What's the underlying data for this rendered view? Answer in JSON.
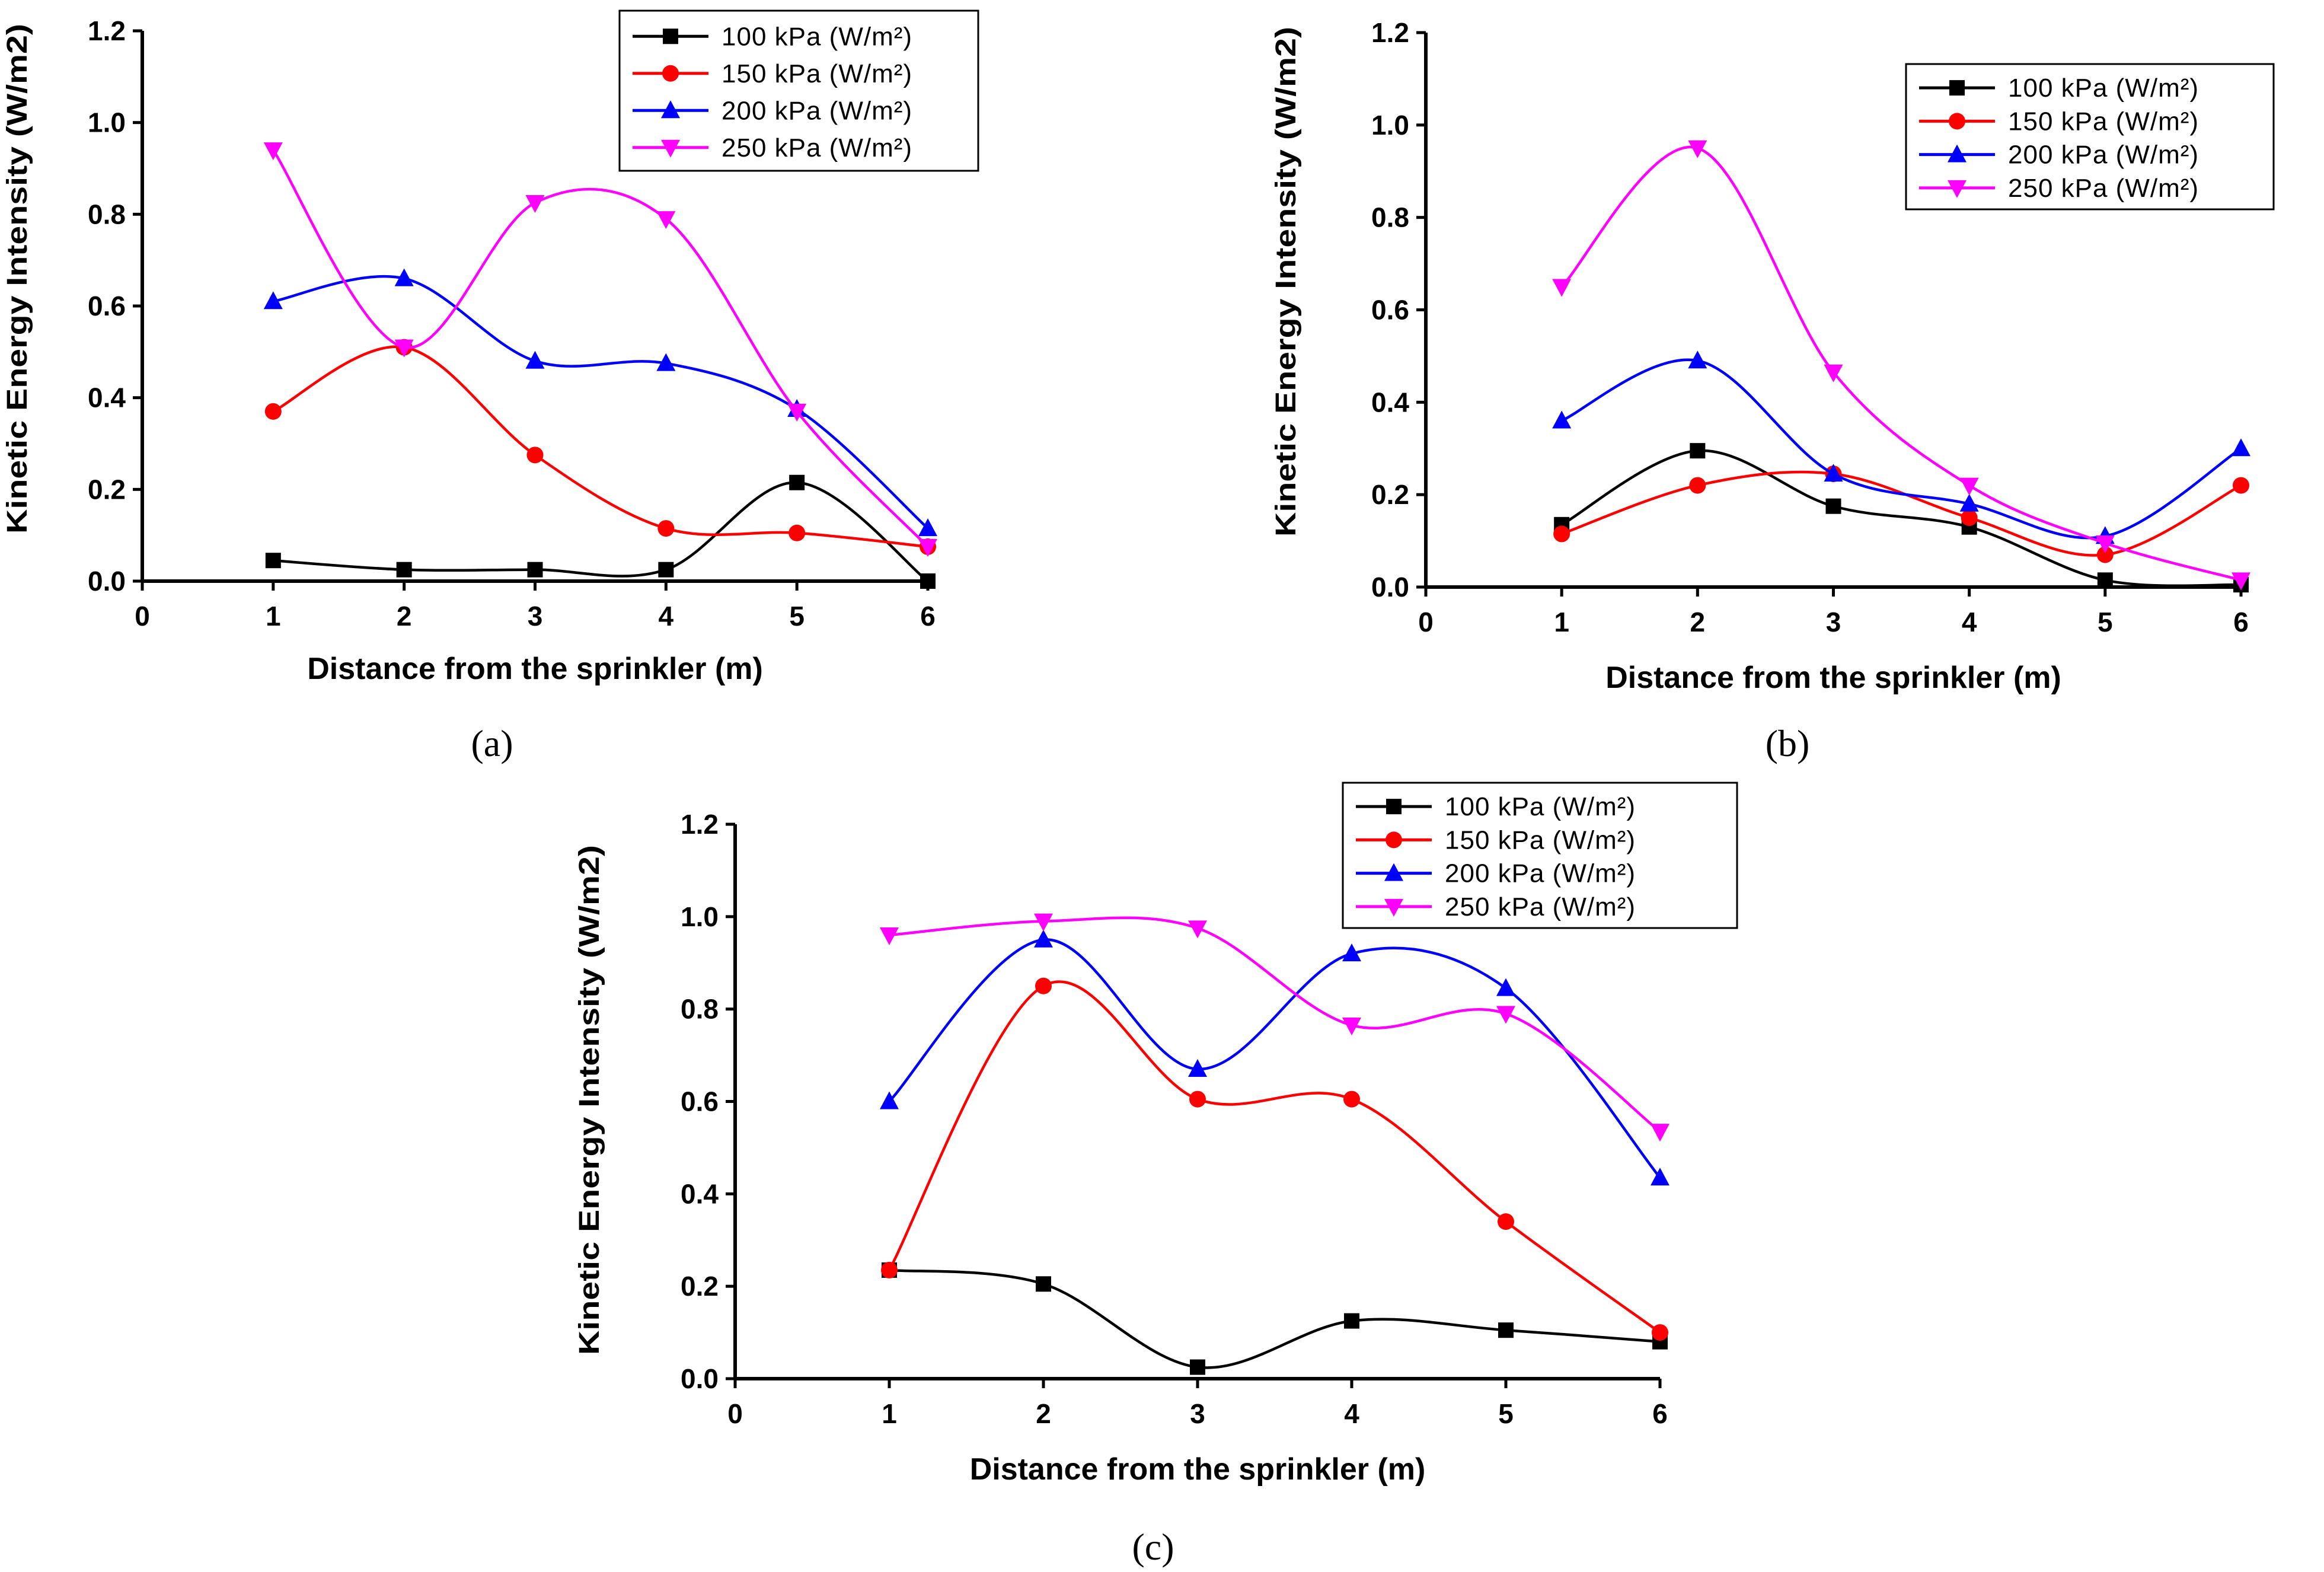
{
  "chart_data": [
    {
      "type": "line",
      "panel_label": "(a)",
      "xlabel": "Distance from the sprinkler (m)",
      "ylabel": "Kinetic Energy Intensity (W/m2)",
      "xlim": [
        0,
        6
      ],
      "ylim": [
        0,
        1.2
      ],
      "xticks": [
        "0",
        "1",
        "2",
        "3",
        "4",
        "5",
        "6"
      ],
      "yticks": [
        "0.0",
        "0.2",
        "0.4",
        "0.6",
        "0.8",
        "1.0",
        "1.2"
      ],
      "legend_position": "top-right",
      "x": [
        1,
        2,
        3,
        4,
        5,
        6
      ],
      "series": [
        {
          "name": "100 kPa (W/m²)",
          "color": "#000000",
          "marker": "square",
          "values": [
            0.045,
            0.025,
            0.025,
            0.025,
            0.215,
            0.0
          ]
        },
        {
          "name": "150 kPa (W/m²)",
          "color": "#ff0000",
          "marker": "circle",
          "values": [
            0.37,
            0.51,
            0.275,
            0.115,
            0.105,
            0.075
          ]
        },
        {
          "name": "200 kPa (W/m²)",
          "color": "#0000ff",
          "marker": "triangle-up",
          "values": [
            0.61,
            0.66,
            0.48,
            0.475,
            0.375,
            0.115
          ]
        },
        {
          "name": "250 kPa (W/m²)",
          "color": "#ff00ff",
          "marker": "triangle-down",
          "values": [
            0.94,
            0.51,
            0.825,
            0.79,
            0.37,
            0.075
          ]
        }
      ]
    },
    {
      "type": "line",
      "panel_label": "(b)",
      "xlabel": "Distance from the sprinkler (m)",
      "ylabel": "Kinetic Energy Intensity (W/m2)",
      "xlim": [
        0,
        6
      ],
      "ylim": [
        0,
        1.2
      ],
      "xticks": [
        "0",
        "1",
        "2",
        "3",
        "4",
        "5",
        "6"
      ],
      "yticks": [
        "0.0",
        "0.2",
        "0.4",
        "0.6",
        "0.8",
        "1.0",
        "1.2"
      ],
      "legend_position": "top-right",
      "x": [
        1,
        2,
        3,
        4,
        5,
        6
      ],
      "series": [
        {
          "name": "100 kPa (W/m²)",
          "color": "#000000",
          "marker": "square",
          "values": [
            0.135,
            0.295,
            0.175,
            0.13,
            0.015,
            0.005
          ]
        },
        {
          "name": "150 kPa (W/m²)",
          "color": "#ff0000",
          "marker": "circle",
          "values": [
            0.115,
            0.22,
            0.245,
            0.15,
            0.07,
            0.22
          ]
        },
        {
          "name": "200 kPa (W/m²)",
          "color": "#0000ff",
          "marker": "triangle-up",
          "values": [
            0.36,
            0.49,
            0.245,
            0.18,
            0.11,
            0.3
          ]
        },
        {
          "name": "250 kPa (W/m²)",
          "color": "#ff00ff",
          "marker": "triangle-down",
          "values": [
            0.65,
            0.95,
            0.465,
            0.22,
            0.095,
            0.015
          ]
        }
      ]
    },
    {
      "type": "line",
      "panel_label": "(c)",
      "xlabel": "Distance from the sprinkler (m)",
      "ylabel": "Kinetic Energy Intensity (W/m2)",
      "xlim": [
        0,
        6
      ],
      "ylim": [
        0,
        1.2
      ],
      "xticks": [
        "0",
        "1",
        "2",
        "3",
        "4",
        "5",
        "6"
      ],
      "yticks": [
        "0.0",
        "0.2",
        "0.4",
        "0.6",
        "0.8",
        "1.0",
        "1.2"
      ],
      "legend_position": "top-right",
      "x": [
        1,
        2,
        3,
        4,
        5,
        6
      ],
      "series": [
        {
          "name": "100 kPa (W/m²)",
          "color": "#000000",
          "marker": "square",
          "values": [
            0.235,
            0.205,
            0.025,
            0.125,
            0.105,
            0.08
          ]
        },
        {
          "name": "150 kPa (W/m²)",
          "color": "#ff0000",
          "marker": "circle",
          "values": [
            0.235,
            0.85,
            0.605,
            0.605,
            0.34,
            0.1
          ]
        },
        {
          "name": "200 kPa (W/m²)",
          "color": "#0000ff",
          "marker": "triangle-up",
          "values": [
            0.6,
            0.95,
            0.67,
            0.92,
            0.845,
            0.435
          ]
        },
        {
          "name": "250 kPa (W/m²)",
          "color": "#ff00ff",
          "marker": "triangle-down",
          "values": [
            0.96,
            0.99,
            0.975,
            0.765,
            0.79,
            0.535
          ]
        }
      ]
    }
  ]
}
